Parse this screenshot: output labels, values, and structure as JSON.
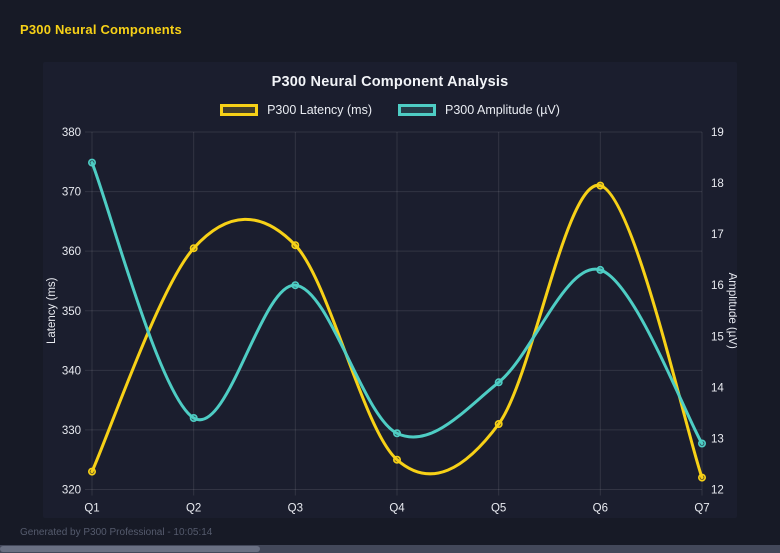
{
  "header": {
    "title": "P300 Neural Components"
  },
  "footer": {
    "text": "Generated by P300 Professional - 10:05:14"
  },
  "colors": {
    "background": "#171a26",
    "panel": "#1b1e2e",
    "accent_yellow": "#f7d117",
    "accent_teal": "#4ecdc4",
    "grid": "rgba(255,255,255,0.10)",
    "tick_text": "#e8eaf0",
    "muted_text": "#555b6d"
  },
  "chart_data": {
    "type": "line",
    "title": "P300 Neural Component Analysis",
    "categories": [
      "Q1",
      "Q2",
      "Q3",
      "Q4",
      "Q5",
      "Q6",
      "Q7"
    ],
    "series": [
      {
        "name": "P300 Latency (ms)",
        "axis": "left",
        "color": "#f7d117",
        "values": [
          323,
          360.5,
          361,
          325,
          331,
          371,
          322
        ]
      },
      {
        "name": "P300 Amplitude (µV)",
        "axis": "right",
        "color": "#4ecdc4",
        "values": [
          18.4,
          13.4,
          16.0,
          13.1,
          14.1,
          16.3,
          12.9
        ]
      }
    ],
    "left_axis": {
      "label": "Latency (ms)",
      "min": 320,
      "max": 380,
      "step": 10
    },
    "right_axis": {
      "label": "Amplitude (µV)",
      "min": 12,
      "max": 19,
      "step": 1
    },
    "legend_position": "top",
    "grid": true,
    "curve": "smooth"
  }
}
